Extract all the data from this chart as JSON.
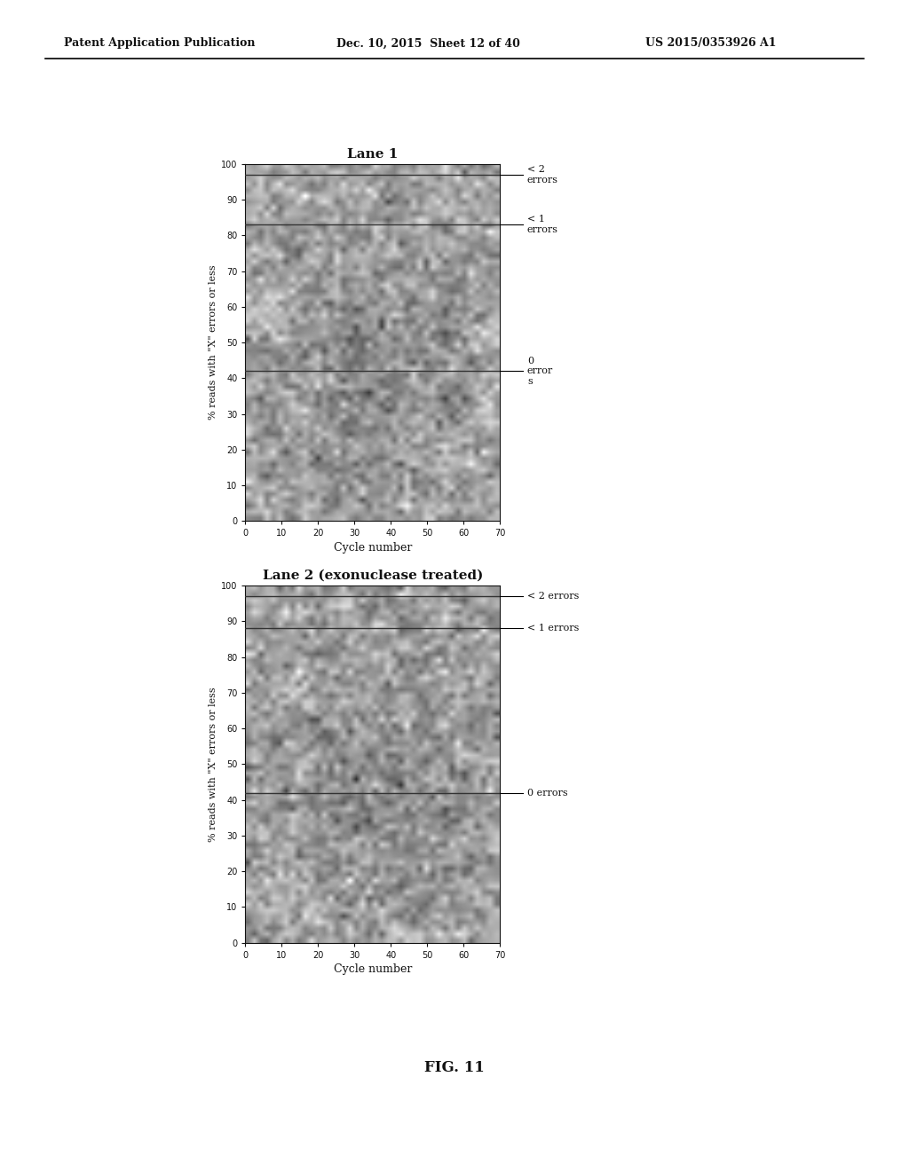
{
  "header_left": "Patent Application Publication",
  "header_mid": "Dec. 10, 2015  Sheet 12 of 40",
  "header_right": "US 2015/0353926 A1",
  "fig_label": "FIG. 11",
  "plot1_title": "Lane 1",
  "plot2_title": "Lane 2 (exonuclease treated)",
  "xlabel": "Cycle number",
  "ylabel": "% reads with \"X\" errors or less",
  "ytick_labels": [
    "0",
    "10",
    "20",
    "30",
    "40",
    "50",
    "60",
    "70",
    "80",
    "90",
    "100"
  ],
  "ytick_vals": [
    0,
    10,
    20,
    30,
    40,
    50,
    60,
    70,
    80,
    90,
    100
  ],
  "xtick_labels": [
    "0",
    "10",
    "20",
    "30",
    "40",
    "50",
    "60",
    "70"
  ],
  "xtick_vals": [
    0,
    10,
    20,
    30,
    40,
    50,
    60,
    70
  ],
  "ann1_lt2": "< 2\nerrors",
  "ann1_lt1": "< 1\nerrors",
  "ann1_0": "0\nerror\ns",
  "ann2_lt2": "< 2 errors",
  "ann2_lt1": "< 1 errors",
  "ann2_0": "0 errors",
  "plot_bg_color": "#aaaaaa",
  "page_bg_color": "#d8d8d8",
  "white_bg": "#ffffff",
  "text_color": "#111111",
  "line_y1_lt2": 97,
  "line_y1_lt1": 83,
  "line_y1_0": 42,
  "line_y2_lt2": 97,
  "line_y2_lt1": 88,
  "line_y2_0": 42,
  "xmax": 70,
  "ymax": 100
}
